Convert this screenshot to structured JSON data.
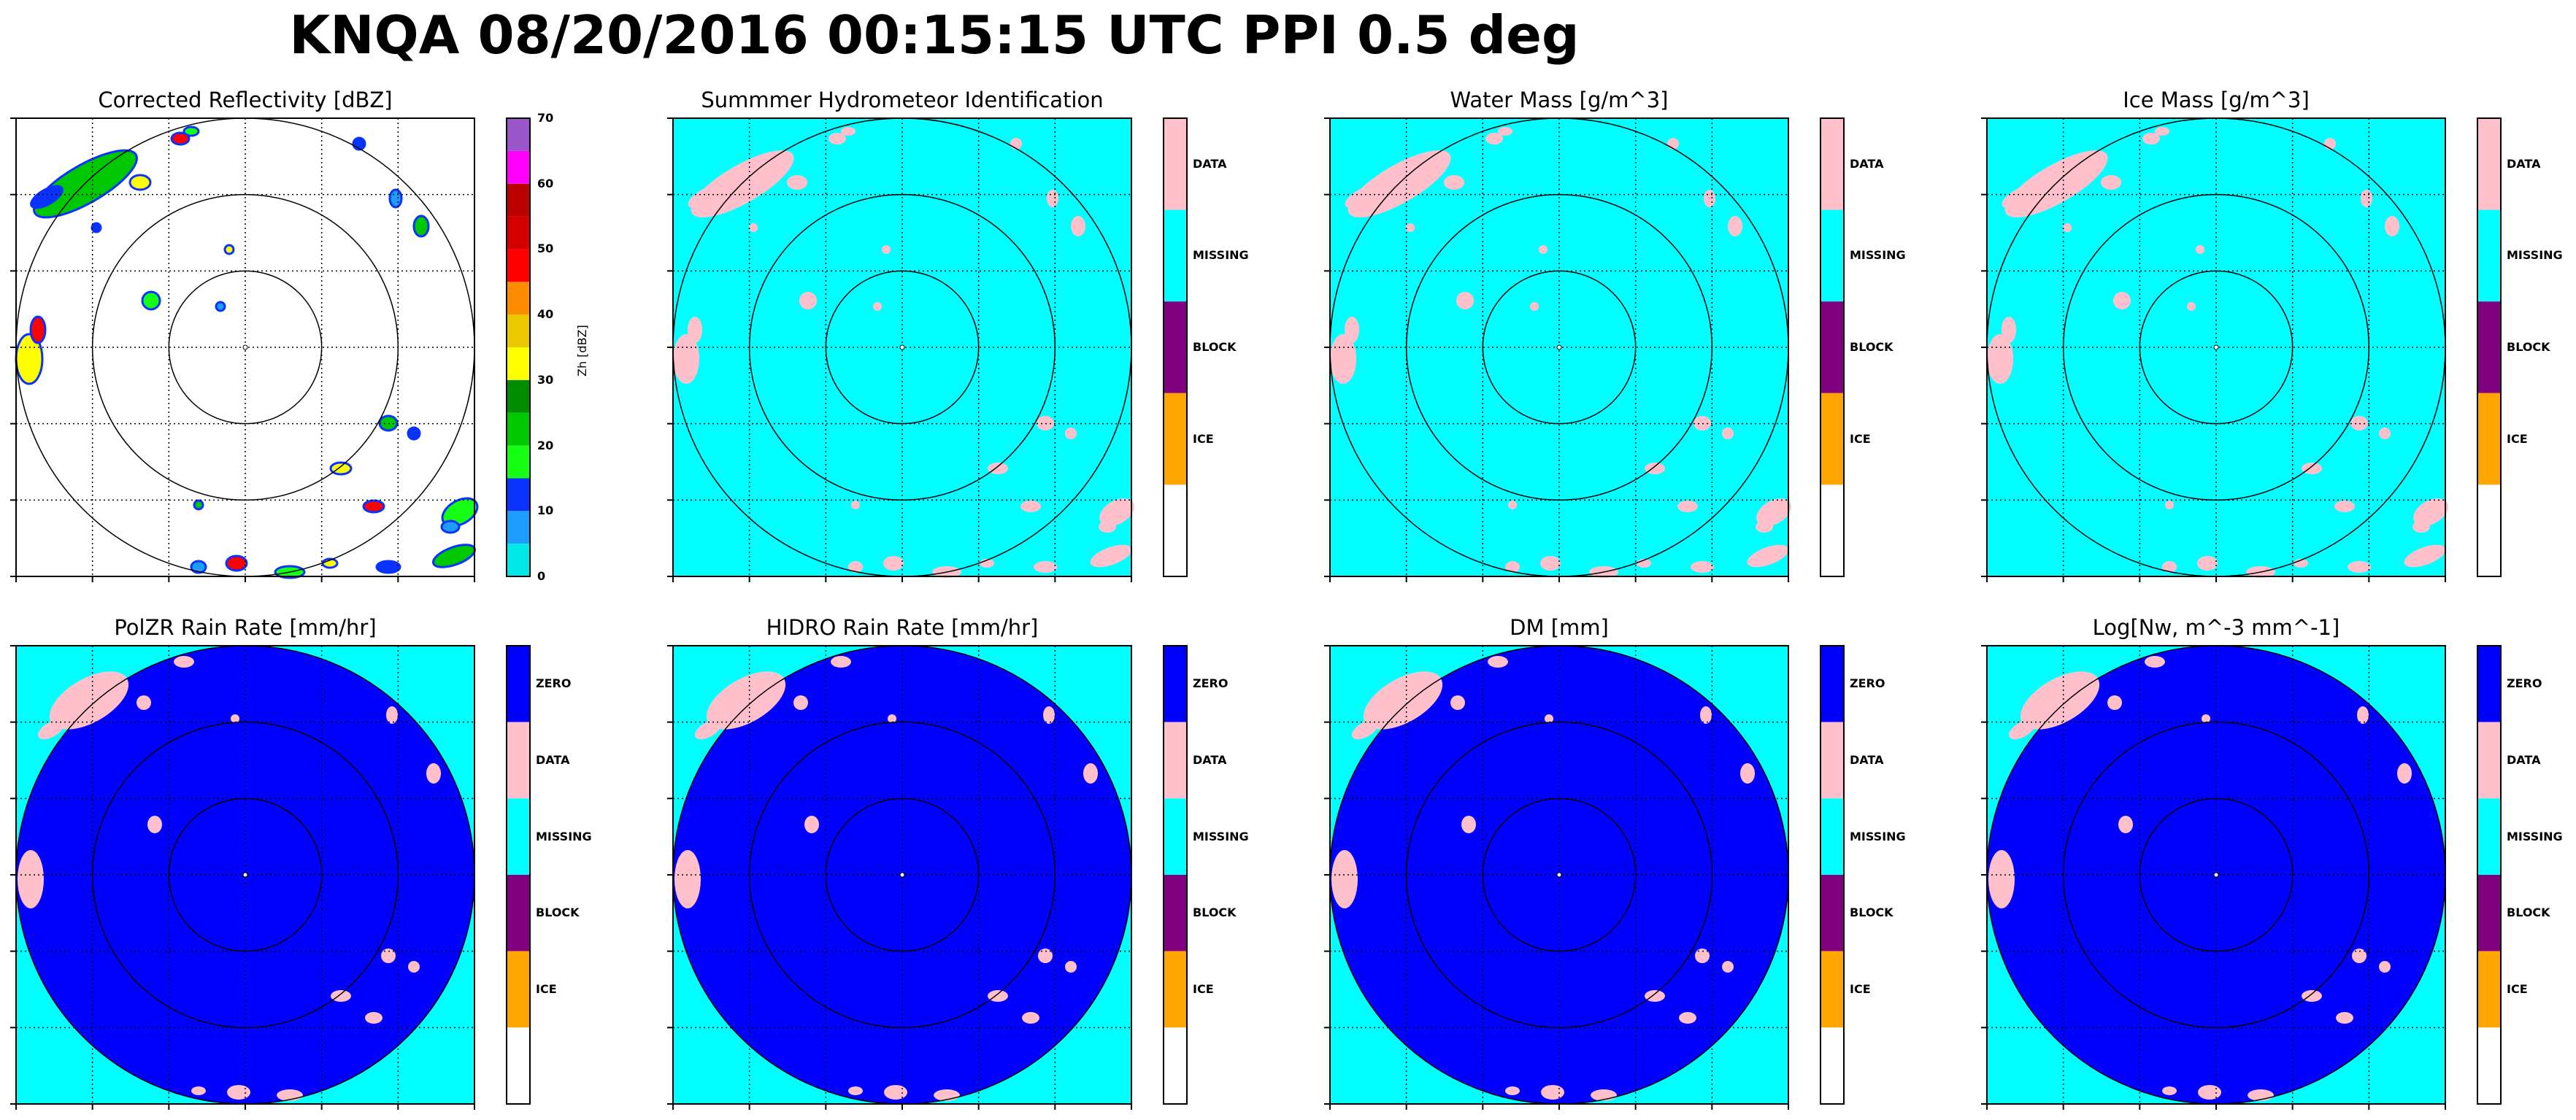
{
  "figure": {
    "title": "KNQA 08/20/2016 00:15:15 UTC PPI 0.5 deg"
  },
  "colors": {
    "missing": "#00ffff",
    "data": "#ffc0cb",
    "block": "#800080",
    "ice": "#ffa500",
    "zero": "#0000ff",
    "ring": "#000000"
  },
  "chart_data": [
    {
      "type": "heatmap",
      "title": "Corrected Reflectivity [dBZ]",
      "background": "white",
      "colorbar": {
        "kind": "continuous",
        "label": "Zh [dBZ]",
        "ticks": [
          "0",
          "10",
          "20",
          "30",
          "40",
          "50",
          "60",
          "70"
        ],
        "range": [
          0,
          70
        ],
        "colors": [
          "#00e8e8",
          "#1e9cff",
          "#0a32ff",
          "#14ff14",
          "#00c800",
          "#008c00",
          "#ffff00",
          "#ebc800",
          "#ff8c00",
          "#ff0000",
          "#d40000",
          "#bb0000",
          "#ff00ff",
          "#9955c9"
        ]
      },
      "range_rings": 3,
      "grid": "dotted"
    },
    {
      "type": "heatmap",
      "title": "Summmer Hydrometeor Identification",
      "background": "missing",
      "colorbar": {
        "kind": "categorical",
        "entries": [
          "DATA",
          "MISSING",
          "BLOCK",
          "ICE",
          ""
        ]
      },
      "range_rings": 3,
      "grid": "dotted"
    },
    {
      "type": "heatmap",
      "title": "Water Mass [g/m^3]",
      "background": "missing",
      "colorbar": {
        "kind": "categorical",
        "entries": [
          "DATA",
          "MISSING",
          "BLOCK",
          "ICE",
          ""
        ]
      },
      "range_rings": 3,
      "grid": "dotted"
    },
    {
      "type": "heatmap",
      "title": "Ice Mass [g/m^3]",
      "background": "missing",
      "colorbar": {
        "kind": "categorical",
        "entries": [
          "DATA",
          "MISSING",
          "BLOCK",
          "ICE",
          ""
        ]
      },
      "range_rings": 3,
      "grid": "dotted"
    },
    {
      "type": "heatmap",
      "title": "PolZR Rain Rate [mm/hr]",
      "background": "zero-disc",
      "colorbar": {
        "kind": "categorical",
        "entries": [
          "ZERO",
          "DATA",
          "MISSING",
          "BLOCK",
          "ICE",
          ""
        ]
      },
      "range_rings": 3,
      "grid": "dotted"
    },
    {
      "type": "heatmap",
      "title": "HIDRO Rain Rate [mm/hr]",
      "background": "zero-disc",
      "colorbar": {
        "kind": "categorical",
        "entries": [
          "ZERO",
          "DATA",
          "MISSING",
          "BLOCK",
          "ICE",
          ""
        ]
      },
      "range_rings": 3,
      "grid": "dotted"
    },
    {
      "type": "heatmap",
      "title": "DM [mm]",
      "background": "zero-disc",
      "colorbar": {
        "kind": "categorical",
        "entries": [
          "ZERO",
          "DATA",
          "MISSING",
          "BLOCK",
          "ICE",
          ""
        ]
      },
      "range_rings": 3,
      "grid": "dotted"
    },
    {
      "type": "heatmap",
      "title": "Log[Nw, m^-3 mm^-1]",
      "background": "zero-disc",
      "colorbar": {
        "kind": "categorical",
        "entries": [
          "ZERO",
          "DATA",
          "MISSING",
          "BLOCK",
          "ICE",
          ""
        ]
      },
      "range_rings": 3,
      "grid": "dotted"
    }
  ]
}
